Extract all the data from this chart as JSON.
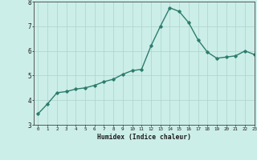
{
  "x": [
    0,
    1,
    2,
    3,
    4,
    5,
    6,
    7,
    8,
    9,
    10,
    11,
    12,
    13,
    14,
    15,
    16,
    17,
    18,
    19,
    20,
    21,
    22,
    23
  ],
  "y": [
    3.45,
    3.85,
    4.3,
    4.35,
    4.45,
    4.5,
    4.6,
    4.75,
    4.85,
    5.05,
    5.2,
    5.25,
    6.2,
    7.0,
    7.75,
    7.6,
    7.15,
    6.45,
    5.95,
    5.7,
    5.75,
    5.8,
    6.0,
    5.85
  ],
  "xlabel": "Humidex (Indice chaleur)",
  "ylim": [
    3,
    8
  ],
  "xlim": [
    -0.5,
    23
  ],
  "yticks": [
    3,
    4,
    5,
    6,
    7,
    8
  ],
  "xticks": [
    0,
    1,
    2,
    3,
    4,
    5,
    6,
    7,
    8,
    9,
    10,
    11,
    12,
    13,
    14,
    15,
    16,
    17,
    18,
    19,
    20,
    21,
    22,
    23
  ],
  "line_color": "#2d7d6e",
  "bg_color": "#cceee8",
  "grid_color": "#aad4cc",
  "marker": "D",
  "marker_size": 1.8,
  "line_width": 1.0
}
